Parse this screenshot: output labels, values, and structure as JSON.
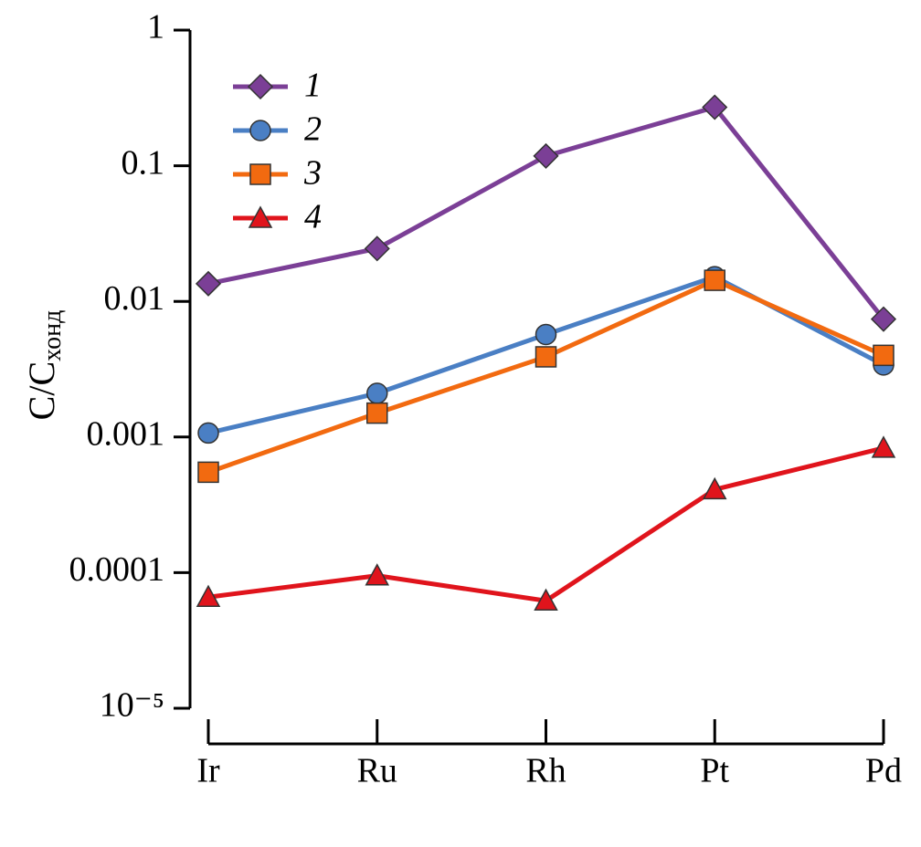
{
  "chart_data": {
    "type": "line",
    "ylabel": "C/C",
    "ylabel_subscript": "хонд",
    "categories": [
      "Ir",
      "Ru",
      "Rh",
      "Pt",
      "Pd"
    ],
    "log_y": true,
    "ylim": [
      1e-05,
      1
    ],
    "yticks": [
      1,
      0.1,
      0.01,
      0.001,
      0.0001,
      {
        "value": 1e-05,
        "label": "10⁻⁵"
      }
    ],
    "series": [
      {
        "name": "1",
        "color": "#7b3f96",
        "marker": "diamond",
        "values": [
          0.0135,
          0.0245,
          0.118,
          0.27,
          0.0074
        ]
      },
      {
        "name": "2",
        "color": "#4a7fc4",
        "marker": "circle",
        "values": [
          0.00107,
          0.0021,
          0.0057,
          0.0152,
          0.0034
        ]
      },
      {
        "name": "3",
        "color": "#f26a10",
        "marker": "square",
        "values": [
          0.00055,
          0.0015,
          0.0039,
          0.0143,
          0.004
        ]
      },
      {
        "name": "4",
        "color": "#e0141c",
        "marker": "triangle",
        "values": [
          6.6e-05,
          9.5e-05,
          6.2e-05,
          0.00041,
          0.00083
        ]
      }
    ],
    "legend": "top-left"
  }
}
